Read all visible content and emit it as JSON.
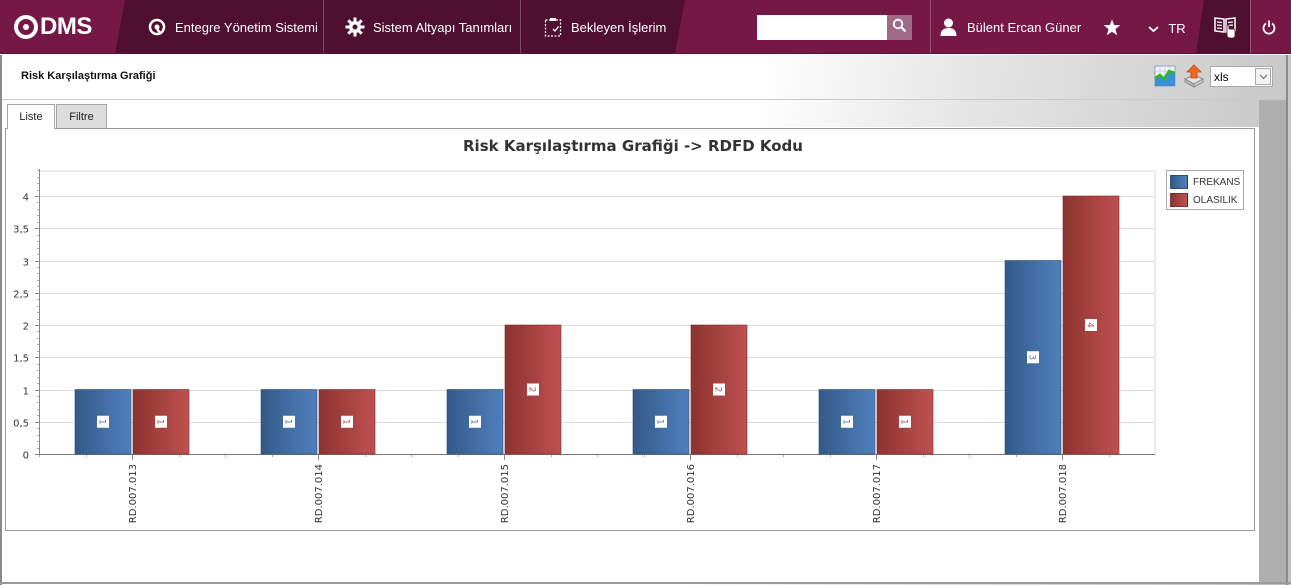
{
  "navbar": {
    "logo_text": "DMS",
    "menu": [
      {
        "label": "Entegre Yönetim Sistemi",
        "icon": "q-logo-icon"
      },
      {
        "label": "Sistem Altyapı Tanımları",
        "icon": "gear-icon"
      },
      {
        "label": "Bekleyen İşlerim",
        "icon": "clipboard-check-icon"
      }
    ],
    "search": {
      "value": "",
      "placeholder": ""
    },
    "user_name": "Bülent Ercan Güner",
    "language": "TR",
    "colors": {
      "primary": "#761846",
      "dark": "#4f0f30"
    }
  },
  "page": {
    "title": "Risk Karşılaştırma Grafiği",
    "export_format": "xls",
    "tabs": [
      {
        "label": "Liste",
        "active": true
      },
      {
        "label": "Filtre",
        "active": false
      }
    ]
  },
  "chart_data": {
    "type": "bar",
    "title": "Risk Karşılaştırma Grafiği -> RDFD Kodu",
    "xlabel": "",
    "ylabel": "",
    "categories": [
      "RD.007.013",
      "RD.007.014",
      "RD.007.015",
      "RD.007.016",
      "RD.007.017",
      "RD.007.018"
    ],
    "series": [
      {
        "name": "FREKANS",
        "values": [
          1,
          1,
          1,
          1,
          1,
          3
        ],
        "color": "#4a7ab3"
      },
      {
        "name": "OLASILIK",
        "values": [
          1,
          1,
          2,
          2,
          1,
          4
        ],
        "color": "#b84e4c"
      }
    ],
    "ylim": [
      0,
      4.4
    ],
    "yticks": [
      0,
      0.5,
      1,
      1.5,
      2,
      2.5,
      3,
      3.5,
      4
    ],
    "ytick_labels": [
      "0",
      "0,5",
      "1",
      "1,5",
      "2",
      "2,5",
      "3",
      "3,5",
      "4"
    ],
    "grid": true,
    "legend_position": "top-right",
    "data_labels": true
  }
}
